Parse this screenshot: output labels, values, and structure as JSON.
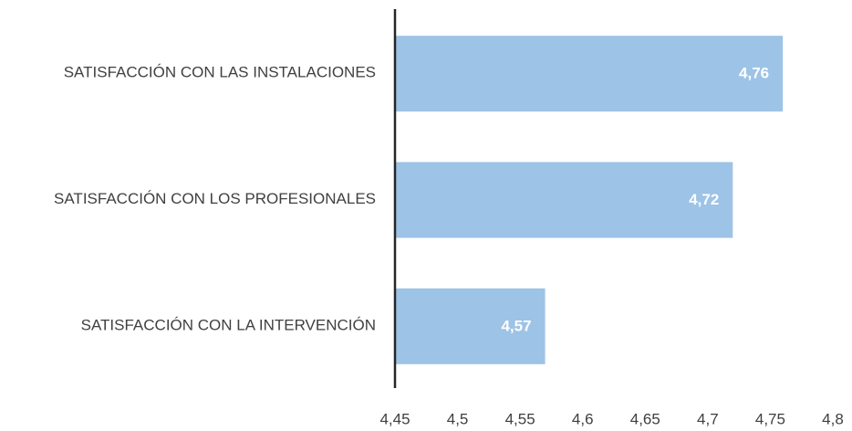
{
  "chart_data": {
    "type": "barh",
    "categories": [
      "SATISFACCIÓN CON LAS INSTALACIONES",
      "SATISFACCIÓN CON LOS PROFESIONALES",
      "SATISFACCIÓN CON LA INTERVENCIÓN"
    ],
    "values": [
      4.76,
      4.72,
      4.57
    ],
    "value_labels": [
      "4,76",
      "4,72",
      "4,57"
    ],
    "color": "#9dc3e6",
    "xlim": [
      4.45,
      4.8
    ],
    "xticks": [
      {
        "value": 4.45,
        "label": "4,45"
      },
      {
        "value": 4.5,
        "label": "4,5"
      },
      {
        "value": 4.55,
        "label": "4,55"
      },
      {
        "value": 4.6,
        "label": "4,6"
      },
      {
        "value": 4.65,
        "label": "4,65"
      },
      {
        "value": 4.7,
        "label": "4,7"
      },
      {
        "value": 4.75,
        "label": "4,75"
      },
      {
        "value": 4.8,
        "label": "4,8"
      }
    ],
    "grid": false
  }
}
